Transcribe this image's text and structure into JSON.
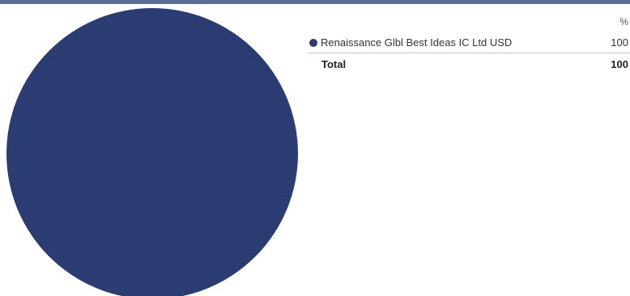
{
  "chart_data": {
    "type": "pie",
    "title": "",
    "value_header": "%",
    "slices": [
      {
        "label": "Renaissance Glbl Best Ideas IC Ltd USD",
        "value": 100,
        "display_value": "100",
        "color": "#2b3c73"
      }
    ],
    "total": {
      "label": "Total",
      "value": "100"
    }
  },
  "colors": {
    "top_bar": "#5a6d93",
    "slice_primary": "#2b3c73"
  }
}
